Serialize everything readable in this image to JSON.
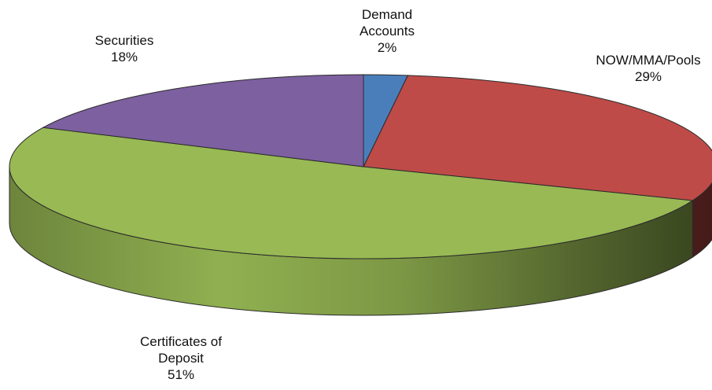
{
  "chart_data": {
    "type": "pie",
    "style": "3d",
    "categories": [
      "Demand Accounts",
      "NOW/MMA/Pools",
      "Certificates of Deposit",
      "Securities"
    ],
    "values": [
      2,
      29,
      51,
      18
    ],
    "value_labels": [
      "2%",
      "29%",
      "51%",
      "18%"
    ],
    "colors": [
      "#4a7ebb",
      "#be4b48",
      "#98b954",
      "#7d60a0"
    ],
    "title": "",
    "legend": "none"
  }
}
